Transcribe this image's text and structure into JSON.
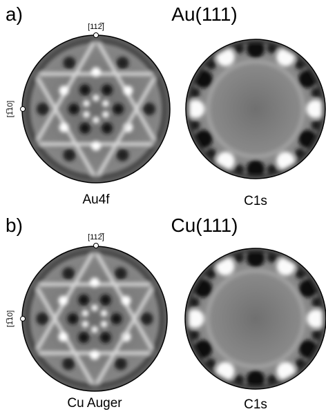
{
  "panels": [
    {
      "label": "a)",
      "title": "Au(111)",
      "top_direction": "[112̅]",
      "side_direction": "[1̅10]",
      "captions": [
        "Au4f",
        "C1s"
      ]
    },
    {
      "label": "b)",
      "title": "Cu(111)",
      "top_direction": "[112̅]",
      "side_direction": "[1̅10]",
      "captions": [
        "Cu Auger",
        "C1s"
      ]
    }
  ]
}
